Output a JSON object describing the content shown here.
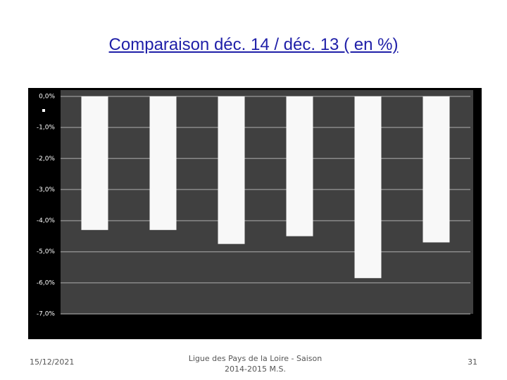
{
  "chart_data": {
    "type": "bar",
    "title": "Comparaison déc. 14 / déc. 13 ( en %)",
    "categories": [
      null,
      null,
      null,
      null,
      null,
      null
    ],
    "values": [
      -4.3,
      -4.3,
      -4.75,
      -4.5,
      -5.85,
      -4.7
    ],
    "color": "#f8f8f8",
    "ylim": [
      -7,
      0
    ],
    "yticks": [
      {
        "value": 0,
        "label": "0,0%"
      },
      {
        "value": -1,
        "label": "-1,0%"
      },
      {
        "value": -2,
        "label": "-2,0%"
      },
      {
        "value": -3,
        "label": "-3,0%"
      },
      {
        "value": -4,
        "label": "-4,0%"
      },
      {
        "value": -5,
        "label": "-5,0%"
      },
      {
        "value": -6,
        "label": "-6,0%"
      },
      {
        "value": -7,
        "label": "-7,0%"
      }
    ],
    "grid": true
  },
  "footer": {
    "date": "15/12/2021",
    "text": "Ligue des Pays de la Loire - Saison 2014-2015 M.S.",
    "page": "31"
  }
}
